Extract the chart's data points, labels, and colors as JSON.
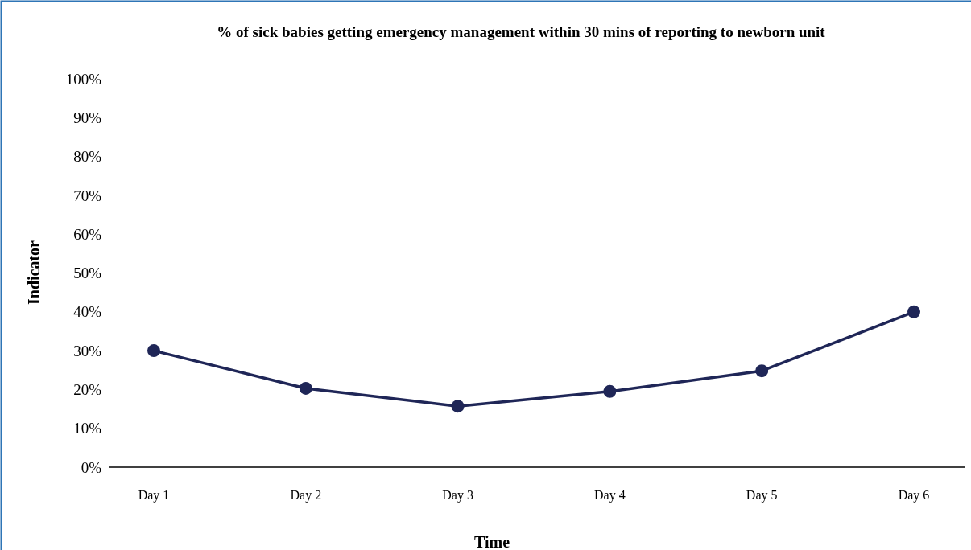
{
  "chart_data": {
    "type": "line",
    "title": "% of sick babies getting emergency management within 30 mins of reporting to newborn unit",
    "xlabel": "Time",
    "ylabel": "Indicator",
    "categories": [
      "Day 1",
      "Day 2",
      "Day 3",
      "Day 4",
      "Day 5",
      "Day 6"
    ],
    "series": [
      {
        "color": "#1f2657",
        "values": [
          30,
          20.3,
          15.7,
          19.5,
          24.8,
          40
        ]
      }
    ],
    "ylim": [
      0,
      100
    ],
    "yticks": [
      {
        "value": 0,
        "label": "0%"
      },
      {
        "value": 10,
        "label": "10%"
      },
      {
        "value": 20,
        "label": "20%"
      },
      {
        "value": 30,
        "label": "30%"
      },
      {
        "value": 40,
        "label": "40%"
      },
      {
        "value": 50,
        "label": "50%"
      },
      {
        "value": 60,
        "label": "60%"
      },
      {
        "value": 70,
        "label": "70%"
      },
      {
        "value": 80,
        "label": "80%"
      },
      {
        "value": 90,
        "label": "90%"
      },
      {
        "value": 100,
        "label": "100%"
      }
    ],
    "grid": false,
    "marker": "circle",
    "line_style": "solid"
  }
}
